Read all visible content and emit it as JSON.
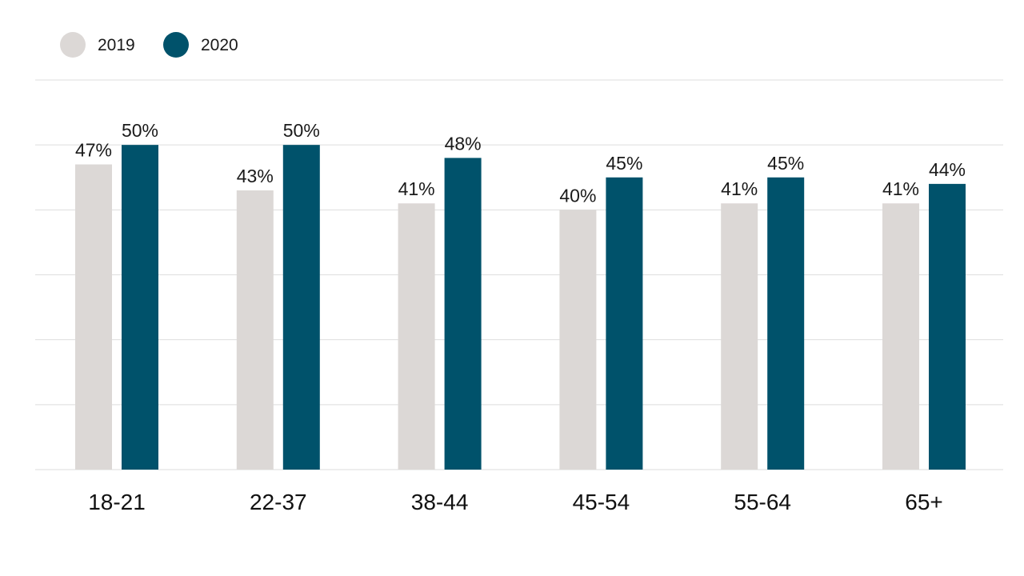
{
  "chart_data": {
    "type": "bar",
    "categories": [
      "18-21",
      "22-37",
      "38-44",
      "45-54",
      "55-64",
      "65+"
    ],
    "series": [
      {
        "name": "2019",
        "color": "#dcd8d6",
        "values": [
          47,
          43,
          41,
          40,
          41,
          41
        ],
        "labels": [
          "47%",
          "43%",
          "41%",
          "40%",
          "41%",
          "41%"
        ]
      },
      {
        "name": "2020",
        "color": "#00526b",
        "values": [
          50,
          50,
          48,
          45,
          45,
          44
        ],
        "labels": [
          "50%",
          "50%",
          "48%",
          "45%",
          "45%",
          "44%"
        ]
      }
    ],
    "ylim": [
      0,
      60
    ],
    "grid": true,
    "legend_position": "top-left",
    "gridline_color": "#dedede",
    "title": "",
    "xlabel": "",
    "ylabel": ""
  }
}
